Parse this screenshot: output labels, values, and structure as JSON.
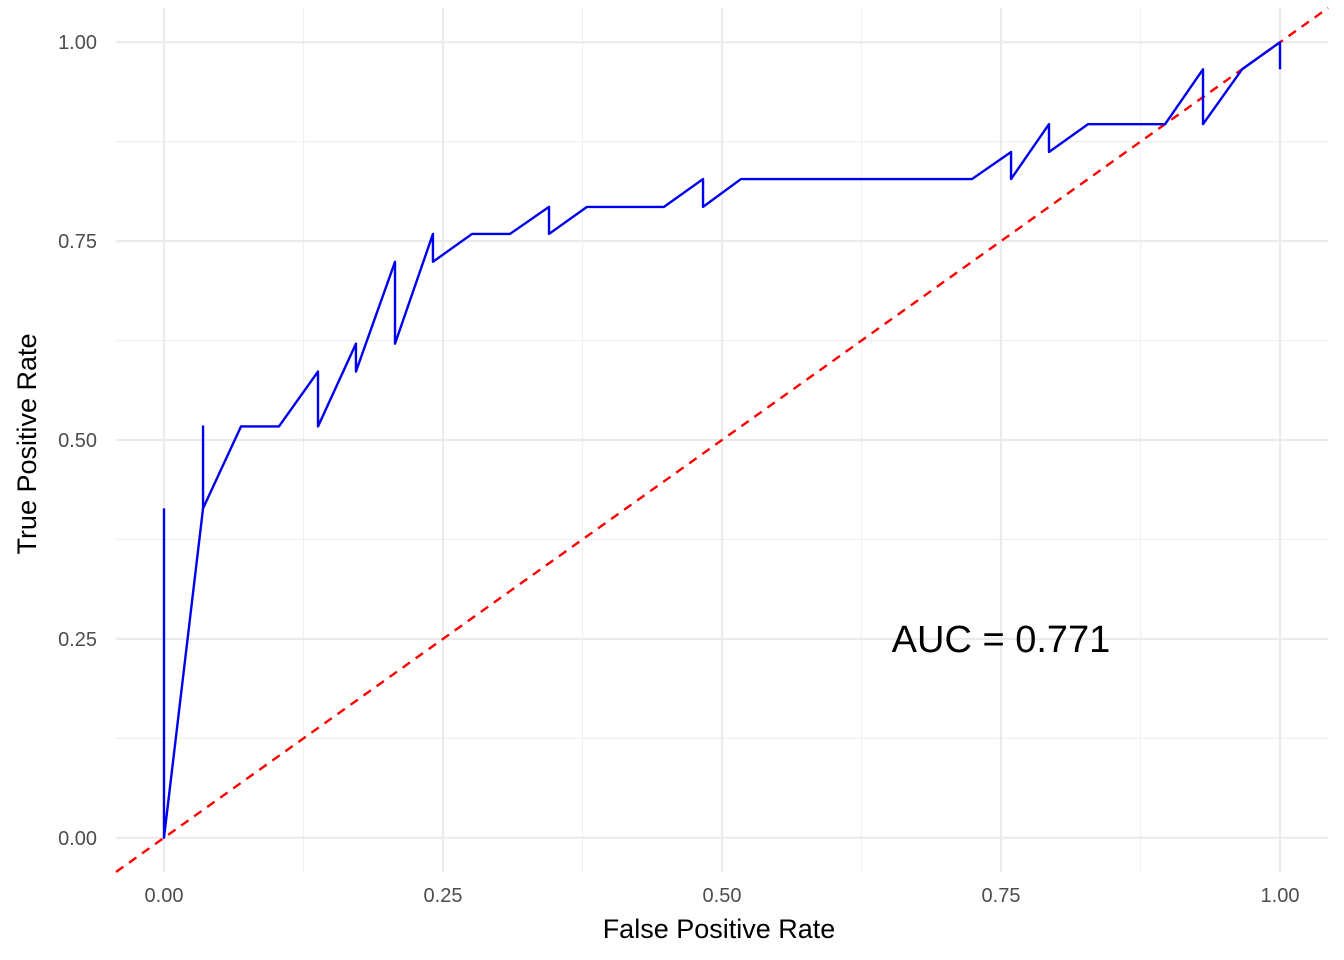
{
  "chart_data": {
    "type": "line",
    "title": "",
    "xlabel": "False Positive Rate",
    "ylabel": "True Positive Rate",
    "xlim": [
      -0.043,
      1.043
    ],
    "ylim": [
      -0.043,
      1.043
    ],
    "x_ticks": [
      0.0,
      0.25,
      0.5,
      0.75,
      1.0
    ],
    "x_tick_labels": [
      "0.00",
      "0.25",
      "0.50",
      "0.75",
      "1.00"
    ],
    "y_ticks": [
      0.0,
      0.25,
      0.5,
      0.75,
      1.0
    ],
    "y_tick_labels": [
      "0.00",
      "0.25",
      "0.50",
      "0.75",
      "1.00"
    ],
    "grid": true,
    "series": [
      {
        "color": "#0000ee",
        "points": [
          [
            0.0,
            0.414
          ],
          [
            0.0,
            0.0
          ],
          [
            0.035,
            0.414
          ],
          [
            0.035,
            0.517
          ],
          [
            0.035,
            0.414
          ],
          [
            0.069,
            0.517
          ],
          [
            0.103,
            0.517
          ],
          [
            0.138,
            0.586
          ],
          [
            0.138,
            0.517
          ],
          [
            0.172,
            0.621
          ],
          [
            0.172,
            0.586
          ],
          [
            0.207,
            0.724
          ],
          [
            0.207,
            0.621
          ],
          [
            0.241,
            0.759
          ],
          [
            0.241,
            0.724
          ],
          [
            0.276,
            0.759
          ],
          [
            0.31,
            0.759
          ],
          [
            0.345,
            0.793
          ],
          [
            0.345,
            0.759
          ],
          [
            0.379,
            0.793
          ],
          [
            0.448,
            0.793
          ],
          [
            0.483,
            0.828
          ],
          [
            0.483,
            0.793
          ],
          [
            0.517,
            0.828
          ],
          [
            0.724,
            0.828
          ],
          [
            0.759,
            0.862
          ],
          [
            0.759,
            0.828
          ],
          [
            0.793,
            0.897
          ],
          [
            0.793,
            0.862
          ],
          [
            0.828,
            0.897
          ],
          [
            0.897,
            0.897
          ],
          [
            0.931,
            0.966
          ],
          [
            0.931,
            0.897
          ],
          [
            0.966,
            0.966
          ],
          [
            1.0,
            1.0
          ],
          [
            1.0,
            0.966
          ]
        ]
      }
    ],
    "reference_line": {
      "from": [
        -0.043,
        -0.043
      ],
      "to": [
        1.043,
        1.043
      ],
      "style": "dashed",
      "color": "#ff0000"
    },
    "annotation": {
      "text": "AUC = 0.771",
      "x": 0.75,
      "y": 0.25
    }
  }
}
